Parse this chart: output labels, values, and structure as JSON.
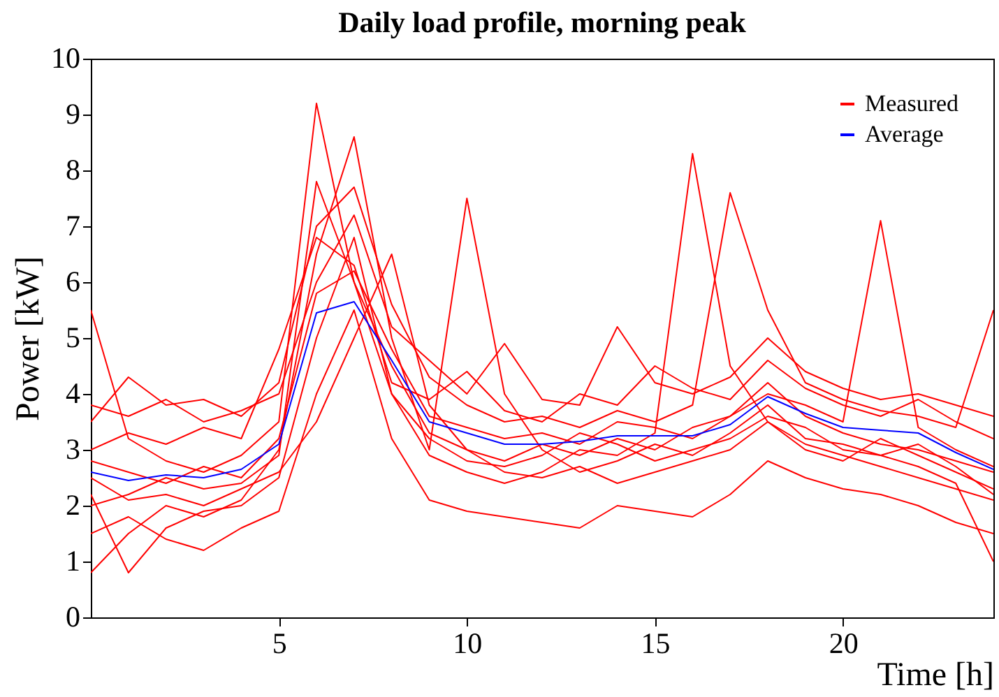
{
  "chart_data": {
    "type": "line",
    "title": "Daily load profile, morning peak",
    "xlabel": "Time [h]",
    "ylabel": "Power [kW]",
    "x": [
      0,
      1,
      2,
      3,
      4,
      5,
      6,
      7,
      8,
      9,
      10,
      11,
      12,
      13,
      14,
      15,
      16,
      17,
      18,
      19,
      20,
      21,
      22,
      23,
      24
    ],
    "xlim": [
      0,
      24
    ],
    "ylim": [
      0,
      10
    ],
    "xticks": [
      5,
      10,
      15,
      20
    ],
    "yticks": [
      0,
      1,
      2,
      3,
      4,
      5,
      6,
      7,
      8,
      9,
      10
    ],
    "grid": false,
    "legend": "top right",
    "marker": "none",
    "line_style": "solid",
    "series": [
      {
        "name": "Measured",
        "color": "#ff0000",
        "values": [
          5.5,
          3.2,
          2.8,
          2.6,
          2.9,
          3.5,
          9.2,
          6.0,
          4.5,
          3.3,
          3.0,
          2.8,
          3.1,
          2.9,
          3.2,
          3.0,
          3.4,
          3.6,
          4.2,
          3.6,
          3.3,
          3.1,
          3.0,
          2.8,
          2.6
        ]
      },
      {
        "color": "#ff0000",
        "values": [
          0.8,
          1.5,
          2.0,
          1.8,
          2.1,
          3.0,
          6.5,
          8.6,
          5.0,
          3.0,
          7.5,
          4.0,
          3.0,
          2.6,
          2.8,
          3.1,
          2.9,
          3.3,
          3.8,
          3.2,
          3.1,
          2.9,
          2.7,
          2.4,
          1.0
        ]
      },
      {
        "color": "#ff0000",
        "values": [
          2.2,
          0.8,
          1.6,
          1.9,
          2.0,
          2.5,
          5.0,
          6.8,
          4.0,
          2.9,
          2.6,
          2.4,
          2.6,
          3.0,
          2.9,
          3.3,
          8.3,
          4.5,
          3.5,
          3.0,
          2.8,
          3.2,
          2.9,
          2.6,
          2.3
        ]
      },
      {
        "color": "#ff0000",
        "values": [
          3.5,
          4.3,
          3.8,
          3.9,
          3.6,
          4.2,
          7.0,
          7.7,
          5.6,
          4.3,
          3.8,
          3.5,
          3.6,
          3.4,
          3.7,
          3.5,
          3.8,
          7.6,
          5.5,
          4.2,
          3.9,
          3.7,
          3.6,
          3.4,
          5.5
        ]
      },
      {
        "color": "#ff0000",
        "values": [
          2.8,
          2.6,
          2.4,
          2.7,
          2.5,
          3.2,
          5.8,
          6.2,
          4.8,
          3.6,
          3.4,
          3.2,
          3.3,
          3.1,
          3.5,
          3.4,
          3.2,
          3.6,
          4.0,
          3.8,
          3.5,
          7.1,
          3.4,
          3.0,
          2.7
        ]
      },
      {
        "color": "#ff0000",
        "values": [
          1.5,
          1.8,
          1.4,
          1.2,
          1.6,
          1.9,
          4.0,
          5.5,
          3.2,
          2.1,
          1.9,
          1.8,
          1.7,
          1.6,
          2.0,
          1.9,
          1.8,
          2.2,
          2.8,
          2.5,
          2.3,
          2.2,
          2.0,
          1.7,
          1.5
        ]
      },
      {
        "color": "#ff0000",
        "values": [
          3.0,
          3.3,
          3.1,
          3.4,
          3.2,
          4.8,
          6.8,
          6.3,
          4.2,
          3.9,
          4.4,
          3.7,
          3.5,
          4.0,
          3.8,
          4.5,
          4.1,
          3.9,
          4.6,
          4.1,
          3.8,
          3.6,
          3.9,
          3.5,
          3.2
        ]
      },
      {
        "color": "#ff0000",
        "values": [
          2.0,
          2.2,
          2.5,
          2.3,
          2.4,
          2.9,
          7.8,
          6.0,
          4.0,
          3.2,
          2.8,
          2.7,
          2.9,
          3.3,
          3.1,
          2.8,
          3.0,
          3.2,
          3.6,
          3.4,
          3.0,
          2.9,
          3.1,
          2.7,
          2.2
        ]
      },
      {
        "color": "#ff0000",
        "values": [
          2.5,
          2.1,
          2.2,
          2.0,
          2.3,
          2.6,
          3.5,
          5.0,
          6.5,
          3.8,
          3.0,
          2.6,
          2.5,
          2.7,
          2.4,
          2.6,
          2.8,
          3.0,
          3.5,
          3.1,
          2.9,
          2.7,
          2.5,
          2.3,
          2.1
        ]
      },
      {
        "color": "#ff0000",
        "values": [
          3.8,
          3.6,
          3.9,
          3.5,
          3.7,
          4.0,
          6.0,
          7.2,
          5.2,
          4.6,
          4.0,
          4.9,
          3.9,
          3.8,
          5.2,
          4.2,
          4.0,
          4.3,
          5.0,
          4.4,
          4.1,
          3.9,
          4.0,
          3.8,
          3.6
        ]
      },
      {
        "name": "Average",
        "color": "#0000ff",
        "values": [
          2.6,
          2.45,
          2.55,
          2.5,
          2.65,
          3.1,
          5.45,
          5.65,
          4.6,
          3.5,
          3.3,
          3.1,
          3.1,
          3.15,
          3.25,
          3.25,
          3.25,
          3.45,
          3.95,
          3.65,
          3.4,
          3.35,
          3.3,
          2.95,
          2.65
        ]
      }
    ]
  }
}
